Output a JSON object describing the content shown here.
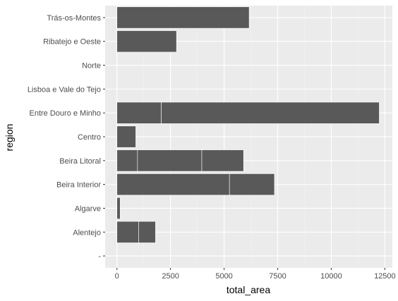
{
  "chart_data": {
    "type": "bar",
    "orientation": "horizontal",
    "stacked": true,
    "xlabel": "total_area",
    "ylabel": "region",
    "xlim": [
      -550,
      12850
    ],
    "x_ticks": [
      0,
      2500,
      5000,
      7500,
      10000,
      12500
    ],
    "x_tick_labels": [
      "0",
      "2500",
      "5000",
      "7500",
      "10000",
      "12500"
    ],
    "grid": true,
    "legend": "none",
    "categories": [
      "Trás-os-Montes",
      "Ribatejo e Oeste",
      "Norte",
      "Lisboa e Vale do Tejo",
      "Entre Douro e Minho",
      "Centro",
      "Beira Litoral",
      "Beira Interior",
      "Algarve",
      "Alentejo",
      "-"
    ],
    "segments": [
      [
        6170
      ],
      [
        2780
      ],
      [],
      [],
      [
        2070,
        10170
      ],
      [
        880
      ],
      [
        960,
        3000,
        1950
      ],
      [
        5250,
        2100
      ],
      [
        150
      ],
      [
        1020,
        780
      ],
      []
    ],
    "colors": {
      "bar": "#595959",
      "panel": "#ebebeb",
      "grid_major": "#ffffff",
      "grid_minor": "#f2f2f2",
      "segment_divider": "#ffffff"
    }
  }
}
